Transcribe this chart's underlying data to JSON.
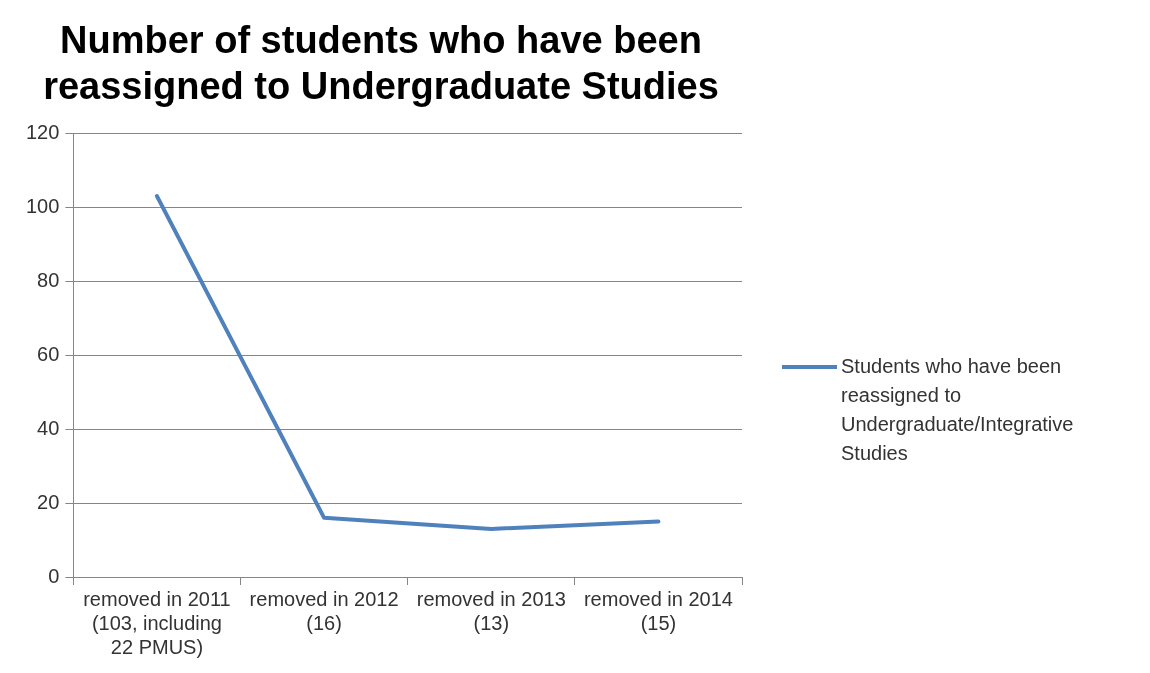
{
  "chart_data": {
    "type": "line",
    "title": "Number of students who have been reassigned to Undergraduate Studies",
    "categories": [
      "removed in 2011 (103, including 22 PMUS)",
      "removed in 2012 (16)",
      "removed in 2013 (13)",
      "removed in 2014 (15)"
    ],
    "series": [
      {
        "name": "Students who have been reassigned to Undergraduate/Integrative Studies",
        "color": "#4f81bd",
        "values": [
          103,
          16,
          13,
          15
        ]
      }
    ],
    "ylim": [
      0,
      120
    ],
    "yticks": [
      0,
      20,
      40,
      60,
      80,
      100,
      120
    ],
    "grid": "y",
    "legend": "right",
    "marker": "none",
    "line_style": "solid"
  }
}
